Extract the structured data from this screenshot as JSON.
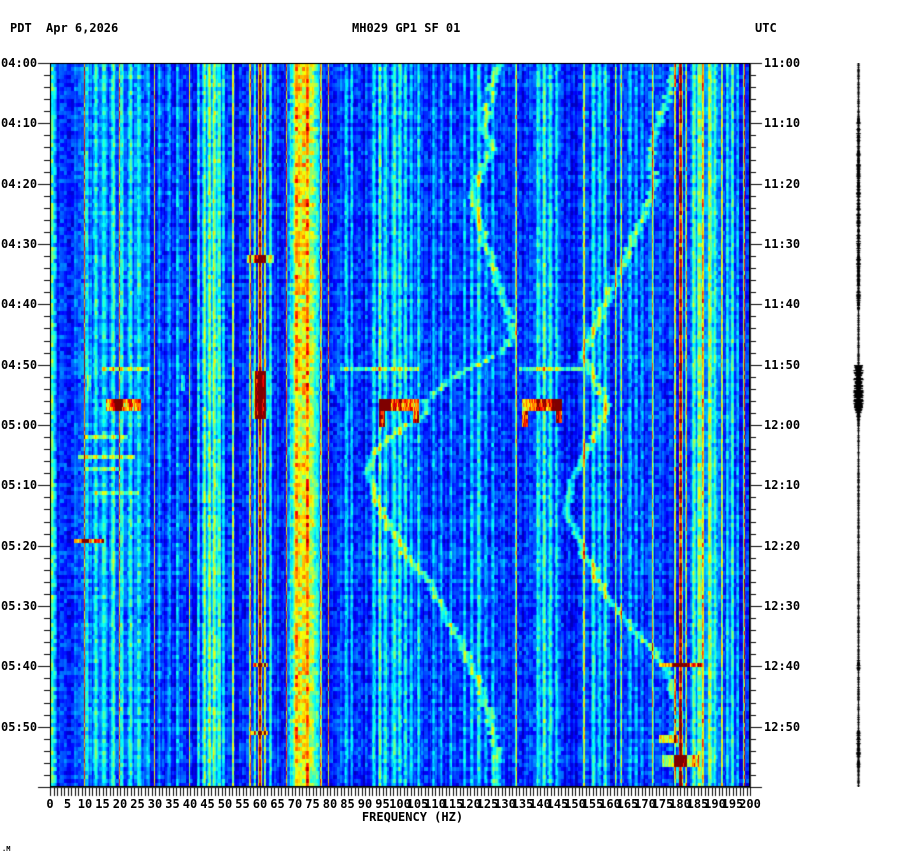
{
  "header": {
    "tz_left": "PDT",
    "date": "Apr 6,2026",
    "station": "MH029 GP1 SF 01",
    "tz_right": "UTC"
  },
  "corner_mark": ".M",
  "chart_data": {
    "type": "heatmap",
    "subtype": "seismic-spectrogram",
    "title": "MH029 GP1 SF 01",
    "colormap": "jet",
    "grid": false,
    "x_axis": {
      "label": "FREQUENCY (HZ)",
      "range_hz": [
        0,
        200
      ],
      "major_tick_hz": 5,
      "minor_tick_hz": 1,
      "tick_labels": [
        "0",
        "5",
        "10",
        "15",
        "20",
        "25",
        "30",
        "35",
        "40",
        "45",
        "50",
        "55",
        "60",
        "65",
        "70",
        "75",
        "80",
        "85",
        "90",
        "95",
        "100",
        "105",
        "110",
        "115",
        "120",
        "125",
        "130",
        "135",
        "140",
        "145",
        "150",
        "155",
        "160",
        "165",
        "170",
        "175",
        "180",
        "185",
        "190",
        "195",
        "200"
      ]
    },
    "time_axis": {
      "duration_min": 120,
      "minor_tick_min": 2,
      "label_step_min": 10,
      "left_timezone": "PDT",
      "right_timezone": "UTC"
    },
    "left_axis": {
      "timezone": "PDT",
      "labels": [
        {
          "min": 0,
          "text": "04:00"
        },
        {
          "min": 10,
          "text": "04:10"
        },
        {
          "min": 20,
          "text": "04:20"
        },
        {
          "min": 30,
          "text": "04:30"
        },
        {
          "min": 40,
          "text": "04:40"
        },
        {
          "min": 50,
          "text": "04:50"
        },
        {
          "min": 60,
          "text": "05:00"
        },
        {
          "min": 70,
          "text": "05:10"
        },
        {
          "min": 80,
          "text": "05:20"
        },
        {
          "min": 90,
          "text": "05:30"
        },
        {
          "min": 100,
          "text": "05:40"
        },
        {
          "min": 110,
          "text": "05:50"
        }
      ]
    },
    "right_axis": {
      "timezone": "UTC",
      "labels": [
        {
          "min": 0,
          "text": "11:00"
        },
        {
          "min": 10,
          "text": "11:10"
        },
        {
          "min": 20,
          "text": "11:20"
        },
        {
          "min": 30,
          "text": "11:30"
        },
        {
          "min": 40,
          "text": "11:40"
        },
        {
          "min": 50,
          "text": "11:50"
        },
        {
          "min": 60,
          "text": "12:00"
        },
        {
          "min": 70,
          "text": "12:10"
        },
        {
          "min": 80,
          "text": "12:20"
        },
        {
          "min": 90,
          "text": "12:30"
        },
        {
          "min": 100,
          "text": "12:40"
        },
        {
          "min": 110,
          "text": "12:50"
        }
      ]
    },
    "base_level": 0.17,
    "bands_format": "[center_hz, half_width_hz, amplitude]",
    "bands": [
      [
        0.7,
        1.3,
        0.26
      ],
      [
        9.8,
        0.22,
        0.55
      ],
      [
        19.8,
        0.22,
        0.5
      ],
      [
        29.8,
        0.22,
        0.5
      ],
      [
        39.8,
        0.22,
        0.48
      ],
      [
        18,
        11,
        0.07
      ],
      [
        10.5,
        0.7,
        0.16
      ],
      [
        13,
        0.7,
        0.18
      ],
      [
        15.5,
        0.7,
        0.16
      ],
      [
        18,
        0.7,
        0.2
      ],
      [
        20.5,
        0.7,
        0.17
      ],
      [
        23,
        0.7,
        0.2
      ],
      [
        25.5,
        0.7,
        0.16
      ],
      [
        28,
        0.7,
        0.14
      ],
      [
        31.5,
        0.6,
        0.12
      ],
      [
        34,
        0.6,
        0.1
      ],
      [
        36.5,
        0.6,
        0.12
      ],
      [
        46,
        4,
        0.08
      ],
      [
        42.5,
        0.5,
        0.2
      ],
      [
        44,
        0.6,
        0.24
      ],
      [
        45.5,
        0.6,
        0.26
      ],
      [
        47,
        0.6,
        0.27
      ],
      [
        48.3,
        0.6,
        0.26
      ],
      [
        49.6,
        0.5,
        0.22
      ],
      [
        52.3,
        0.3,
        0.42
      ],
      [
        57.2,
        0.25,
        0.55
      ],
      [
        58.6,
        0.3,
        0.3
      ],
      [
        60,
        0.55,
        0.82
      ],
      [
        61.4,
        0.3,
        0.45
      ],
      [
        63,
        0.4,
        0.22
      ],
      [
        67.6,
        0.25,
        0.62
      ],
      [
        72.5,
        4.8,
        0.45
      ],
      [
        70.3,
        0.5,
        0.16
      ],
      [
        73.6,
        0.5,
        0.18
      ],
      [
        77.4,
        0.25,
        0.6
      ],
      [
        79.6,
        0.22,
        0.58
      ],
      [
        84.6,
        0.5,
        0.2
      ],
      [
        86.2,
        0.5,
        0.18
      ],
      [
        98,
        8,
        0.05
      ],
      [
        92.6,
        0.6,
        0.2
      ],
      [
        94.2,
        0.6,
        0.22
      ],
      [
        95.8,
        0.6,
        0.2
      ],
      [
        98.4,
        0.6,
        0.18
      ],
      [
        100,
        0.6,
        0.2
      ],
      [
        101.6,
        0.6,
        0.18
      ],
      [
        103.2,
        0.6,
        0.16
      ],
      [
        105.4,
        0.5,
        0.2
      ],
      [
        109.5,
        0.5,
        0.14
      ],
      [
        112,
        0.5,
        0.12
      ],
      [
        114.5,
        0.5,
        0.13
      ],
      [
        118.5,
        0.5,
        0.14
      ],
      [
        120.5,
        0.6,
        0.17
      ],
      [
        122.5,
        0.6,
        0.18
      ],
      [
        124.5,
        0.6,
        0.17
      ],
      [
        126.5,
        0.6,
        0.16
      ],
      [
        133.2,
        0.25,
        0.5
      ],
      [
        142,
        4,
        0.04
      ],
      [
        139.6,
        0.6,
        0.2
      ],
      [
        141.2,
        0.6,
        0.21
      ],
      [
        143,
        0.6,
        0.2
      ],
      [
        144.8,
        0.6,
        0.19
      ],
      [
        152.6,
        0.25,
        0.48
      ],
      [
        155.3,
        0.6,
        0.2
      ],
      [
        157,
        0.6,
        0.22
      ],
      [
        158.6,
        0.6,
        0.2
      ],
      [
        161.6,
        0.3,
        0.42
      ],
      [
        163.2,
        0.25,
        0.48
      ],
      [
        165.8,
        0.6,
        0.18
      ],
      [
        167.5,
        0.6,
        0.17
      ],
      [
        169.2,
        0.6,
        0.16
      ],
      [
        172.2,
        0.25,
        0.45
      ],
      [
        178.6,
        0.3,
        0.5
      ],
      [
        180.2,
        0.6,
        0.85
      ],
      [
        181.8,
        0.3,
        0.55
      ],
      [
        187,
        5,
        0.12
      ],
      [
        184,
        0.6,
        0.22
      ],
      [
        185.5,
        0.6,
        0.24
      ],
      [
        186.5,
        0.4,
        0.42
      ],
      [
        188.5,
        0.6,
        0.24
      ],
      [
        190,
        0.5,
        0.2
      ],
      [
        192,
        0.25,
        0.5
      ],
      [
        193.5,
        0.5,
        0.2
      ],
      [
        195,
        0.5,
        0.22
      ],
      [
        196.5,
        0.5,
        0.18
      ],
      [
        198.4,
        0.3,
        0.62
      ]
    ],
    "events_format": "[t0_min, t1_min, f0_hz, f1_hz, amplitude]",
    "events": [
      [
        31.6,
        33.1,
        56.5,
        63.5,
        0.3
      ],
      [
        31.6,
        33.1,
        58.6,
        61.4,
        0.6
      ],
      [
        50.2,
        51.3,
        15,
        28,
        0.24
      ],
      [
        50.2,
        51.3,
        83,
        105,
        0.25
      ],
      [
        50.2,
        51.3,
        134,
        152,
        0.25
      ],
      [
        51.2,
        59,
        58.7,
        61.3,
        0.62
      ],
      [
        51.2,
        59,
        57.8,
        62.2,
        0.2
      ],
      [
        51.5,
        54.5,
        10.6,
        11.4,
        0.2
      ],
      [
        51.5,
        54.5,
        37.5,
        38.2,
        0.2
      ],
      [
        51.5,
        54.5,
        80.2,
        80.9,
        0.2
      ],
      [
        55.8,
        57.4,
        16,
        25.5,
        0.45
      ],
      [
        55.8,
        57.4,
        18.6,
        20.2,
        0.62
      ],
      [
        55.8,
        57.4,
        94,
        105,
        0.5
      ],
      [
        55.8,
        57.4,
        94,
        97,
        0.68
      ],
      [
        57.4,
        60.2,
        94,
        95.2,
        0.6
      ],
      [
        57.4,
        59.4,
        103.8,
        105,
        0.55
      ],
      [
        55.8,
        57.4,
        135,
        146,
        0.52
      ],
      [
        55.8,
        57.4,
        143.5,
        146,
        0.66
      ],
      [
        57.4,
        60.4,
        135,
        136.2,
        0.6
      ],
      [
        57.4,
        59.8,
        144.8,
        146,
        0.62
      ],
      [
        61.8,
        62.5,
        10,
        22,
        0.22
      ],
      [
        64.8,
        65.6,
        8,
        24,
        0.25
      ],
      [
        66.9,
        67.6,
        10,
        20,
        0.22
      ],
      [
        70.7,
        71.5,
        12,
        25,
        0.2
      ],
      [
        78.6,
        79.6,
        7,
        15,
        0.52
      ],
      [
        78.6,
        79.6,
        9.4,
        10.8,
        0.68
      ],
      [
        99.2,
        100.4,
        174,
        186,
        0.4
      ],
      [
        99.2,
        100.4,
        177.8,
        182.4,
        0.6
      ],
      [
        99.2,
        100.3,
        58,
        62,
        0.5
      ],
      [
        110.7,
        111.7,
        57.5,
        62,
        0.5
      ],
      [
        111.4,
        113,
        174,
        179,
        0.42
      ],
      [
        114.8,
        117,
        178.3,
        181.7,
        0.62
      ],
      [
        114.9,
        116.6,
        175,
        185,
        0.32
      ]
    ],
    "traces": [
      {
        "name": "gliding-tone-low",
        "width_hz": 1.5,
        "amp": 0.26,
        "points": [
          [
            0,
            128
          ],
          [
            5,
            126
          ],
          [
            10,
            124
          ],
          [
            14,
            126
          ],
          [
            18,
            123
          ],
          [
            22,
            121
          ],
          [
            26,
            123
          ],
          [
            30,
            124
          ],
          [
            34,
            127
          ],
          [
            38,
            129
          ],
          [
            42,
            131
          ],
          [
            45,
            132
          ],
          [
            47.5,
            130
          ],
          [
            50,
            122
          ],
          [
            53,
            113
          ],
          [
            56,
            108
          ],
          [
            58.5,
            107
          ],
          [
            60,
            102
          ],
          [
            61.5,
            99
          ],
          [
            63,
            95.5
          ],
          [
            65,
            92.5
          ],
          [
            67,
            90.5
          ],
          [
            69,
            91
          ],
          [
            71,
            92.5
          ],
          [
            74,
            94.5
          ],
          [
            78,
            98
          ],
          [
            81,
            101
          ],
          [
            84,
            105
          ],
          [
            87,
            109
          ],
          [
            90,
            112
          ],
          [
            93,
            114.5
          ],
          [
            96,
            117
          ],
          [
            100,
            120
          ],
          [
            104,
            123
          ],
          [
            108,
            125.5
          ],
          [
            112,
            127
          ],
          [
            116,
            128
          ],
          [
            120,
            127.5
          ]
        ]
      },
      {
        "name": "gliding-tone-high",
        "width_hz": 1.5,
        "amp": 0.26,
        "points": [
          [
            0,
            179
          ],
          [
            4,
            177.5
          ],
          [
            8,
            175
          ],
          [
            12,
            172.5
          ],
          [
            16,
            171
          ],
          [
            20,
            173
          ],
          [
            24,
            170.5
          ],
          [
            28,
            167.5
          ],
          [
            32,
            164.5
          ],
          [
            36,
            161.5
          ],
          [
            40,
            158.5
          ],
          [
            44,
            155.5
          ],
          [
            48,
            152.5
          ],
          [
            51,
            154
          ],
          [
            54,
            157
          ],
          [
            57,
            159
          ],
          [
            60,
            157.5
          ],
          [
            63,
            154.5
          ],
          [
            66,
            151.5
          ],
          [
            69,
            149.5
          ],
          [
            72,
            148
          ],
          [
            75,
            148.5
          ],
          [
            78,
            150
          ],
          [
            81,
            152.5
          ],
          [
            84,
            155.5
          ],
          [
            87,
            158
          ],
          [
            90,
            161
          ],
          [
            93,
            165
          ],
          [
            96,
            170
          ],
          [
            99,
            174.5
          ],
          [
            102,
            177
          ],
          [
            105,
            178.5
          ],
          [
            108,
            180
          ],
          [
            111,
            178.5
          ],
          [
            114,
            180.5
          ],
          [
            117,
            179.5
          ],
          [
            120,
            180.5
          ]
        ]
      }
    ],
    "seismogram": {
      "position": "right-margin",
      "thick_segment_min": [
        50,
        58
      ],
      "medium_segment_min": [
        9,
        41
      ],
      "minor_bump_segments_min": [
        [
          98.8,
          100.6
        ],
        [
          110.5,
          116.8
        ]
      ]
    }
  }
}
